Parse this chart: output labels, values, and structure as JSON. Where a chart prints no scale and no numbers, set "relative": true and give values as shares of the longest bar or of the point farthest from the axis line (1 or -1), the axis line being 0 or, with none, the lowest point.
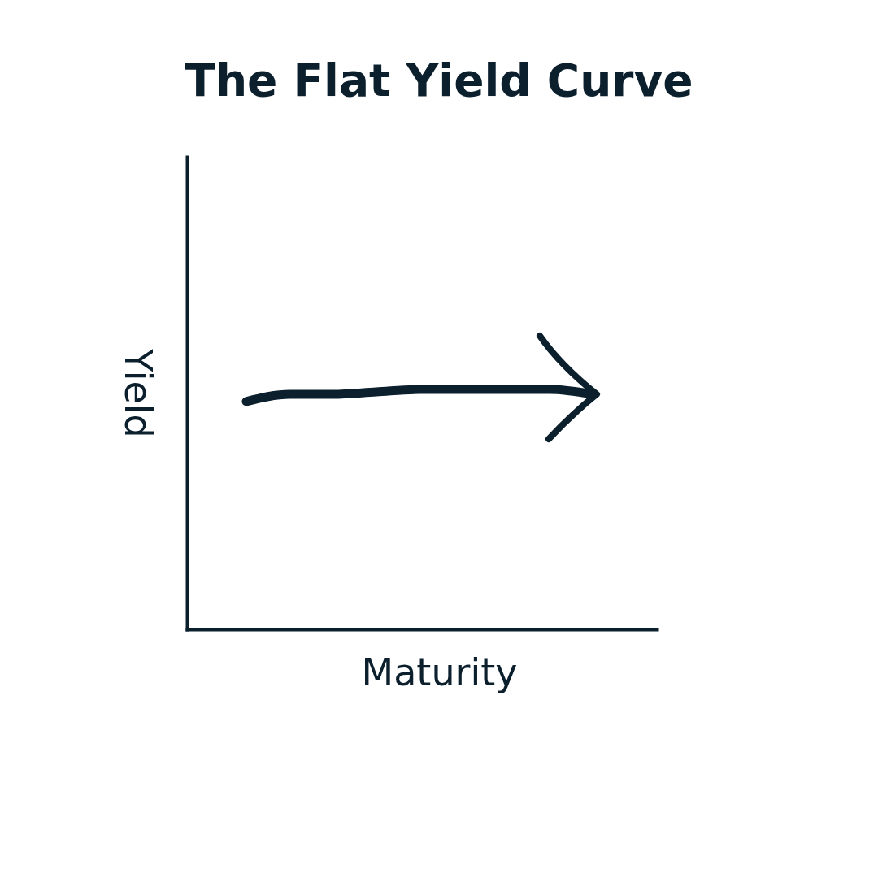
{
  "chart_data": {
    "type": "line",
    "title": "The Flat Yield Curve",
    "xlabel": "Maturity",
    "ylabel": "Yield",
    "relative": true,
    "categories": [
      null,
      null,
      null,
      null,
      null,
      null,
      null,
      null,
      null
    ],
    "series": [
      {
        "color": "#0b1f2d",
        "values": [
          0.95,
          0.98,
          0.98,
          0.99,
          1,
          1,
          1,
          1,
          0.98
        ]
      }
    ]
  }
}
